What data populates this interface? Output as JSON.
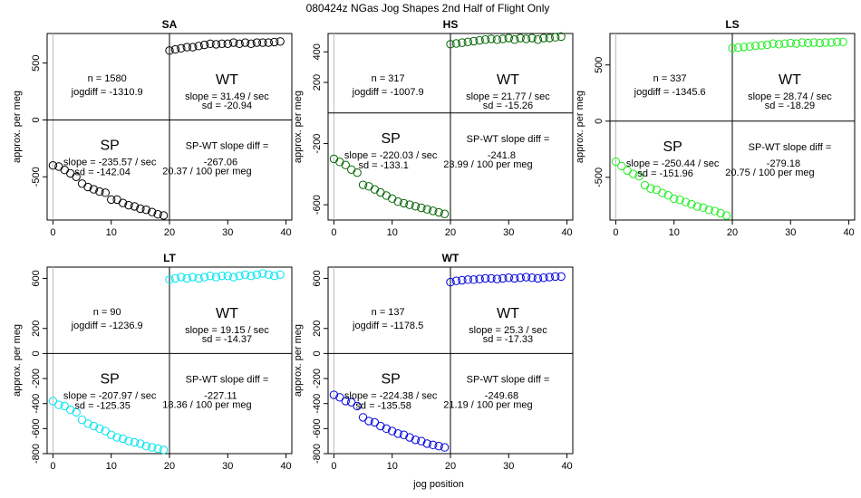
{
  "figure": {
    "title": "080424z   NGas Jog Shapes 2nd Half of Flight Only",
    "xlabel": "jog position",
    "ylabel": "approx. per meg"
  },
  "chart_data": [
    {
      "type": "scatter",
      "title": "SA",
      "color": "#000000",
      "xlim": [
        -1,
        41
      ],
      "ylim": [
        -880,
        760
      ],
      "yticks": [
        -500,
        0,
        500
      ],
      "xticks": [
        0,
        10,
        20,
        30,
        40
      ],
      "vline": 20,
      "hline": 0,
      "stats": {
        "n": "n = 1580",
        "jogdiff": "jogdiff = -1310.9",
        "wt_label": "WT",
        "wt_slope": "slope = 31.49 / sec",
        "wt_sd": "sd = -20.94",
        "sp_label": "SP",
        "sp_slope": "slope = -235.57 / sec",
        "sp_sd": "sd = -142.04",
        "diff_label": "SP-WT slope diff =",
        "diff_value": "-267.06",
        "diff_per": "20.37 / 100 per meg"
      },
      "x": [
        0,
        1,
        2,
        3,
        4,
        5,
        6,
        7,
        8,
        9,
        10,
        11,
        12,
        13,
        14,
        15,
        16,
        17,
        18,
        19,
        20,
        21,
        22,
        23,
        24,
        25,
        26,
        27,
        28,
        29,
        30,
        31,
        32,
        33,
        34,
        35,
        36,
        37,
        38,
        39
      ],
      "y": [
        -400,
        -410,
        -440,
        -470,
        -500,
        -560,
        -590,
        -610,
        -630,
        -640,
        -700,
        -700,
        -730,
        -750,
        -760,
        -780,
        -790,
        -810,
        -830,
        -840,
        610,
        620,
        630,
        640,
        640,
        650,
        660,
        670,
        665,
        670,
        670,
        680,
        670,
        680,
        670,
        680,
        680,
        680,
        685,
        690
      ]
    },
    {
      "type": "scatter",
      "title": "HS",
      "color": "#006400",
      "xlim": [
        -1,
        41
      ],
      "ylim": [
        -700,
        520
      ],
      "yticks": [
        -600,
        -200,
        200,
        400
      ],
      "xticks": [
        0,
        10,
        20,
        30,
        40
      ],
      "vline": 20,
      "hline": 0,
      "stats": {
        "n": "n = 317",
        "jogdiff": "jogdiff = -1007.9",
        "wt_label": "WT",
        "wt_slope": "slope = 21.77 / sec",
        "wt_sd": "sd = -15.26",
        "sp_label": "SP",
        "sp_slope": "slope = -220.03 / sec",
        "sp_sd": "sd = -133.1",
        "diff_label": "SP-WT slope diff =",
        "diff_value": "-241.8",
        "diff_per": "23.99 / 100 per meg"
      },
      "x": [
        0,
        1,
        2,
        3,
        4,
        5,
        6,
        7,
        8,
        9,
        10,
        11,
        12,
        13,
        14,
        15,
        16,
        17,
        18,
        19,
        20,
        21,
        22,
        23,
        24,
        25,
        26,
        27,
        28,
        29,
        30,
        31,
        32,
        33,
        34,
        35,
        36,
        37,
        38,
        39
      ],
      "y": [
        -300,
        -320,
        -340,
        -370,
        -390,
        -470,
        -480,
        -500,
        -520,
        -540,
        -560,
        -580,
        -590,
        -600,
        -610,
        -620,
        -630,
        -640,
        -650,
        -660,
        450,
        455,
        460,
        465,
        470,
        475,
        480,
        485,
        480,
        485,
        490,
        480,
        490,
        485,
        490,
        480,
        490,
        490,
        495,
        500
      ]
    },
    {
      "type": "scatter",
      "title": "LS",
      "color": "#22ee22",
      "xlim": [
        -1,
        41
      ],
      "ylim": [
        -880,
        780
      ],
      "yticks": [
        -500,
        0,
        500
      ],
      "xticks": [
        0,
        10,
        20,
        30,
        40
      ],
      "vline": 20,
      "hline": 0,
      "stats": {
        "n": "n = 337",
        "jogdiff": "jogdiff = -1345.6",
        "wt_label": "WT",
        "wt_slope": "slope = 28.74 / sec",
        "wt_sd": "sd = -18.29",
        "sp_label": "SP",
        "sp_slope": "slope = -250.44 / sec",
        "sp_sd": "sd = -151.96",
        "diff_label": "SP-WT slope diff =",
        "diff_value": "-279.18",
        "diff_per": "20.75 / 100 per meg"
      },
      "x": [
        0,
        1,
        2,
        3,
        4,
        5,
        6,
        7,
        8,
        9,
        10,
        11,
        12,
        13,
        14,
        15,
        16,
        17,
        18,
        19,
        20,
        21,
        22,
        23,
        24,
        25,
        26,
        27,
        28,
        29,
        30,
        31,
        32,
        33,
        34,
        35,
        36,
        37,
        38,
        39
      ],
      "y": [
        -360,
        -400,
        -440,
        -470,
        -490,
        -570,
        -600,
        -610,
        -640,
        -660,
        -690,
        -700,
        -720,
        -740,
        -760,
        -770,
        -790,
        -800,
        -820,
        -840,
        650,
        655,
        660,
        665,
        670,
        675,
        680,
        690,
        685,
        690,
        695,
        690,
        700,
        695,
        700,
        695,
        700,
        700,
        705,
        705
      ]
    },
    {
      "type": "scatter",
      "title": "LT",
      "color": "#00e5ee",
      "xlim": [
        -1,
        41
      ],
      "ylim": [
        -800,
        690
      ],
      "yticks": [
        -800,
        -600,
        -400,
        -200,
        0,
        200,
        600
      ],
      "xticks": [
        0,
        10,
        20,
        30,
        40
      ],
      "vline": 20,
      "hline": 0,
      "stats": {
        "n": "n = 90",
        "jogdiff": "jogdiff = -1236.9",
        "wt_label": "WT",
        "wt_slope": "slope = 19.15 / sec",
        "wt_sd": "sd = -14.37",
        "sp_label": "SP",
        "sp_slope": "slope = -207.97 / sec",
        "sp_sd": "sd = -125.35",
        "diff_label": "SP-WT slope diff =",
        "diff_value": "-227.11",
        "diff_per": "18.36 / 100 per meg"
      },
      "x": [
        0,
        1,
        2,
        3,
        4,
        5,
        6,
        7,
        8,
        9,
        10,
        11,
        12,
        13,
        14,
        15,
        16,
        17,
        18,
        19,
        20,
        21,
        22,
        23,
        24,
        25,
        26,
        27,
        28,
        29,
        30,
        31,
        32,
        33,
        34,
        35,
        36,
        37,
        38,
        39
      ],
      "y": [
        -380,
        -410,
        -420,
        -450,
        -470,
        -530,
        -560,
        -580,
        -600,
        -620,
        -650,
        -670,
        -680,
        -700,
        -710,
        -720,
        -740,
        -750,
        -760,
        -770,
        590,
        600,
        610,
        600,
        610,
        600,
        610,
        620,
        610,
        620,
        620,
        610,
        620,
        630,
        620,
        630,
        640,
        630,
        620,
        630
      ]
    },
    {
      "type": "scatter",
      "title": "WT",
      "color": "#0000dd",
      "xlim": [
        -1,
        41
      ],
      "ylim": [
        -800,
        690
      ],
      "yticks": [
        -800,
        -600,
        -400,
        -200,
        0,
        200,
        600
      ],
      "xticks": [
        0,
        10,
        20,
        30,
        40
      ],
      "vline": 20,
      "hline": 0,
      "stats": {
        "n": "n = 137",
        "jogdiff": "jogdiff = -1178.5",
        "wt_label": "WT",
        "wt_slope": "slope = 25.3 / sec",
        "wt_sd": "sd = -17.33",
        "sp_label": "SP",
        "sp_slope": "slope = -224.38 / sec",
        "sp_sd": "sd = -135.58",
        "diff_label": "SP-WT slope diff =",
        "diff_value": "-249.68",
        "diff_per": "21.19 / 100 per meg"
      },
      "x": [
        0,
        1,
        2,
        3,
        4,
        5,
        6,
        7,
        8,
        9,
        10,
        11,
        12,
        13,
        14,
        15,
        16,
        17,
        18,
        19,
        20,
        21,
        22,
        23,
        24,
        25,
        26,
        27,
        28,
        29,
        30,
        31,
        32,
        33,
        34,
        35,
        36,
        37,
        38,
        39
      ],
      "y": [
        -330,
        -350,
        -380,
        -390,
        -420,
        -510,
        -540,
        -550,
        -580,
        -600,
        -620,
        -640,
        -650,
        -670,
        -690,
        -700,
        -720,
        -730,
        -740,
        -750,
        570,
        580,
        585,
        590,
        590,
        595,
        600,
        600,
        595,
        600,
        605,
        600,
        605,
        610,
        605,
        600,
        605,
        610,
        615,
        615
      ]
    }
  ]
}
